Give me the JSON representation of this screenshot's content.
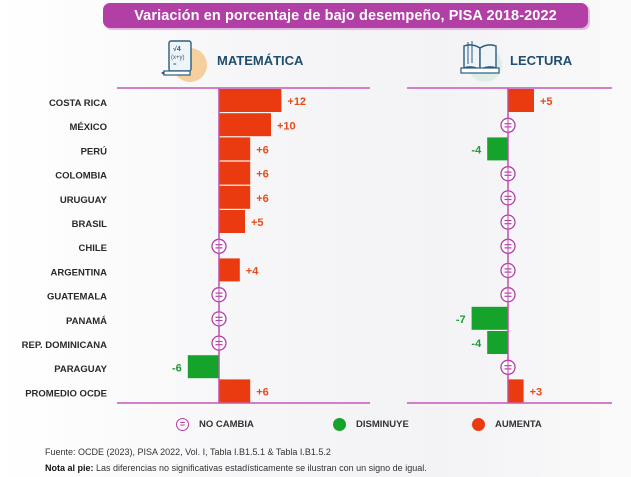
{
  "title": "Variación en porcentaje de bajo desempeño, PISA 2018-2022",
  "colors": {
    "increase": "#e93a10",
    "decrease": "#15a32b",
    "no_change": "#b23fa6",
    "axis": "#c458b8",
    "title_bg": "#b23fa6",
    "subject_text": "#1f4e6e",
    "increase_label": "#e84a1a",
    "decrease_label": "#1f9a35"
  },
  "subjects": {
    "math": {
      "label": "MATEMÁTICA",
      "icon": "math-formula-icon"
    },
    "reading": {
      "label": "LECTURA",
      "icon": "open-book-icon"
    }
  },
  "legend": [
    {
      "key": "no_change",
      "label": "NO CAMBIA",
      "icon": "equals-circle-icon"
    },
    {
      "key": "decrease",
      "label": "DISMINUYE",
      "icon": "green-dot-icon"
    },
    {
      "key": "increase",
      "label": "AUMENTA",
      "icon": "red-dot-icon"
    }
  ],
  "footer": {
    "source_label": "Fuente:",
    "source_text": " OCDE (2023), PISA 2022, Vol. I, Tabla I.B1.5.1 & Tabla I.B1.5.2",
    "note_label": "Nota al pie:",
    "note_text": " Las diferencias no significativas estadísticamente se ilustran con un signo de igual."
  },
  "chart_data": [
    {
      "type": "bar",
      "orientation": "horizontal",
      "title": "MATEMÁTICA",
      "categories": [
        "COSTA RICA",
        "MÉXICO",
        "PERÚ",
        "COLOMBIA",
        "URUGUAY",
        "BRASIL",
        "CHILE",
        "ARGENTINA",
        "GUATEMALA",
        "PANAMÁ",
        "REP. DOMINICANA",
        "PARAGUAY",
        "PROMEDIO OCDE"
      ],
      "values": [
        12,
        10,
        6,
        6,
        6,
        5,
        null,
        4,
        null,
        null,
        null,
        -6,
        6
      ],
      "labels": [
        "+12",
        "+10",
        "+6",
        "+6",
        "+6",
        "+5",
        "=",
        "+4",
        "=",
        "=",
        "=",
        "-6",
        "+6"
      ],
      "no_change_marker": "=",
      "xlim": [
        -7,
        13
      ],
      "grid": false
    },
    {
      "type": "bar",
      "orientation": "horizontal",
      "title": "LECTURA",
      "categories": [
        "COSTA RICA",
        "MÉXICO",
        "PERÚ",
        "COLOMBIA",
        "URUGUAY",
        "BRASIL",
        "CHILE",
        "ARGENTINA",
        "GUATEMALA",
        "PANAMÁ",
        "REP. DOMINICANA",
        "PARAGUAY",
        "PROMEDIO OCDE"
      ],
      "values": [
        5,
        null,
        -4,
        null,
        null,
        null,
        null,
        null,
        null,
        -7,
        -4,
        null,
        3
      ],
      "labels": [
        "+5",
        "=",
        "-4",
        "=",
        "=",
        "=",
        "=",
        "=",
        "=",
        "-7",
        "-4",
        "=",
        "+3"
      ],
      "no_change_marker": "=",
      "xlim": [
        -7,
        13
      ],
      "grid": false
    }
  ]
}
